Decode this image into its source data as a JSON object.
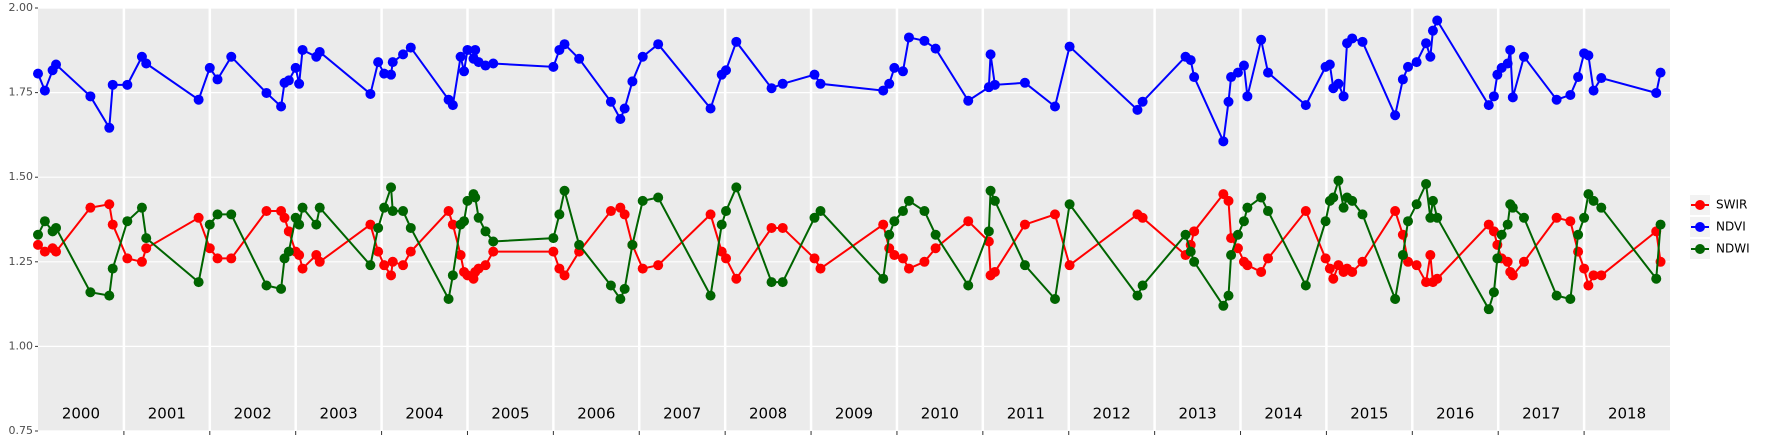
{
  "chart_data": {
    "type": "line",
    "x": [
      2000.0,
      2000.08,
      2000.17,
      2000.21,
      2000.61,
      2000.83,
      2000.87,
      2001.04,
      2001.21,
      2001.26,
      2001.87,
      2002.0,
      2002.09,
      2002.25,
      2002.66,
      2002.83,
      2002.87,
      2002.92,
      2003.0,
      2003.04,
      2003.08,
      2003.24,
      2003.28,
      2003.87,
      2003.96,
      2004.03,
      2004.11,
      2004.13,
      2004.25,
      2004.34,
      2004.78,
      2004.83,
      2004.92,
      2004.96,
      2005.0,
      2005.07,
      2005.09,
      2005.13,
      2005.21,
      2005.3,
      2006.0,
      2006.07,
      2006.13,
      2006.3,
      2006.67,
      2006.78,
      2006.83,
      2006.92,
      2007.04,
      2007.22,
      2007.83,
      2007.96,
      2008.01,
      2008.13,
      2008.54,
      2008.67,
      2009.04,
      2009.11,
      2009.84,
      2009.91,
      2009.97,
      2010.07,
      2010.14,
      2010.32,
      2010.45,
      2010.83,
      2011.07,
      2011.09,
      2011.14,
      2011.49,
      2011.84,
      2012.01,
      2012.8,
      2012.86,
      2013.36,
      2013.42,
      2013.46,
      2013.8,
      2013.86,
      2013.89,
      2013.97,
      2014.04,
      2014.08,
      2014.24,
      2014.32,
      2014.76,
      2014.99,
      2015.04,
      2015.08,
      2015.14,
      2015.2,
      2015.24,
      2015.3,
      2015.42,
      2015.8,
      2015.89,
      2015.95,
      2016.05,
      2016.16,
      2016.21,
      2016.24,
      2016.29,
      2016.89,
      2016.95,
      2016.99,
      2017.04,
      2017.11,
      2017.14,
      2017.17,
      2017.3,
      2017.68,
      2017.84,
      2017.93,
      2018.0,
      2018.05,
      2018.11,
      2018.2,
      2018.84,
      2018.89
    ],
    "series": [
      {
        "name": "SWIR",
        "color": "#ff0000",
        "values": [
          1.3,
          1.28,
          1.29,
          1.28,
          1.41,
          1.42,
          1.36,
          1.26,
          1.25,
          1.29,
          1.38,
          1.29,
          1.26,
          1.26,
          1.4,
          1.4,
          1.38,
          1.34,
          1.28,
          1.27,
          1.23,
          1.27,
          1.25,
          1.36,
          1.28,
          1.24,
          1.21,
          1.25,
          1.24,
          1.28,
          1.4,
          1.36,
          1.27,
          1.22,
          1.21,
          1.2,
          1.22,
          1.23,
          1.24,
          1.28,
          1.28,
          1.23,
          1.21,
          1.28,
          1.4,
          1.41,
          1.39,
          1.3,
          1.23,
          1.24,
          1.39,
          1.28,
          1.26,
          1.2,
          1.35,
          1.35,
          1.26,
          1.23,
          1.36,
          1.29,
          1.27,
          1.26,
          1.23,
          1.25,
          1.29,
          1.37,
          1.31,
          1.21,
          1.22,
          1.36,
          1.39,
          1.24,
          1.39,
          1.38,
          1.27,
          1.3,
          1.34,
          1.45,
          1.43,
          1.32,
          1.29,
          1.25,
          1.24,
          1.22,
          1.26,
          1.4,
          1.26,
          1.23,
          1.2,
          1.24,
          1.22,
          1.23,
          1.22,
          1.25,
          1.4,
          1.33,
          1.25,
          1.24,
          1.19,
          1.27,
          1.19,
          1.2,
          1.36,
          1.34,
          1.3,
          1.26,
          1.25,
          1.22,
          1.21,
          1.25,
          1.38,
          1.37,
          1.28,
          1.23,
          1.18,
          1.21,
          1.21,
          1.34,
          1.25
        ]
      },
      {
        "name": "NDVI",
        "color": "#0000ff",
        "values": [
          1.806,
          1.756,
          1.816,
          1.833,
          1.739,
          1.646,
          1.773,
          1.773,
          1.856,
          1.836,
          1.729,
          1.823,
          1.789,
          1.856,
          1.749,
          1.709,
          1.779,
          1.786,
          1.823,
          1.776,
          1.876,
          1.856,
          1.87,
          1.746,
          1.84,
          1.806,
          1.803,
          1.84,
          1.863,
          1.883,
          1.729,
          1.713,
          1.856,
          1.813,
          1.876,
          1.85,
          1.876,
          1.84,
          1.83,
          1.836,
          1.826,
          1.876,
          1.893,
          1.85,
          1.723,
          1.672,
          1.703,
          1.783,
          1.856,
          1.893,
          1.703,
          1.803,
          1.816,
          1.9,
          1.763,
          1.776,
          1.803,
          1.776,
          1.756,
          1.776,
          1.823,
          1.813,
          1.913,
          1.903,
          1.88,
          1.726,
          1.766,
          1.863,
          1.773,
          1.779,
          1.709,
          1.886,
          1.699,
          1.723,
          1.856,
          1.846,
          1.796,
          1.606,
          1.723,
          1.796,
          1.809,
          1.83,
          1.739,
          1.906,
          1.809,
          1.713,
          1.826,
          1.833,
          1.763,
          1.776,
          1.739,
          1.896,
          1.91,
          1.9,
          1.683,
          1.789,
          1.826,
          1.84,
          1.896,
          1.856,
          1.933,
          1.963,
          1.713,
          1.739,
          1.803,
          1.823,
          1.836,
          1.876,
          1.736,
          1.856,
          1.729,
          1.743,
          1.796,
          1.866,
          1.86,
          1.756,
          1.793,
          1.749,
          1.809
        ]
      },
      {
        "name": "NDWI",
        "color": "#006400",
        "values": [
          1.33,
          1.37,
          1.34,
          1.35,
          1.16,
          1.15,
          1.23,
          1.37,
          1.41,
          1.32,
          1.19,
          1.36,
          1.39,
          1.39,
          1.18,
          1.17,
          1.26,
          1.28,
          1.38,
          1.36,
          1.41,
          1.36,
          1.41,
          1.24,
          1.35,
          1.41,
          1.47,
          1.4,
          1.4,
          1.35,
          1.14,
          1.21,
          1.36,
          1.37,
          1.43,
          1.45,
          1.44,
          1.38,
          1.34,
          1.31,
          1.32,
          1.39,
          1.46,
          1.3,
          1.18,
          1.14,
          1.17,
          1.3,
          1.43,
          1.44,
          1.15,
          1.36,
          1.4,
          1.47,
          1.19,
          1.19,
          1.38,
          1.4,
          1.2,
          1.33,
          1.37,
          1.4,
          1.43,
          1.4,
          1.33,
          1.18,
          1.34,
          1.46,
          1.43,
          1.24,
          1.14,
          1.42,
          1.15,
          1.18,
          1.33,
          1.28,
          1.25,
          1.12,
          1.15,
          1.27,
          1.33,
          1.37,
          1.41,
          1.44,
          1.4,
          1.18,
          1.37,
          1.43,
          1.44,
          1.49,
          1.41,
          1.44,
          1.43,
          1.39,
          1.14,
          1.27,
          1.37,
          1.42,
          1.48,
          1.38,
          1.43,
          1.38,
          1.11,
          1.16,
          1.26,
          1.33,
          1.36,
          1.42,
          1.41,
          1.38,
          1.15,
          1.14,
          1.33,
          1.38,
          1.45,
          1.43,
          1.41,
          1.2,
          1.36
        ]
      }
    ],
    "xlim": [
      2000,
      2019
    ],
    "xticks": [
      2001,
      2002,
      2003,
      2004,
      2005,
      2006,
      2007,
      2008,
      2009,
      2010,
      2011,
      2012,
      2013,
      2014,
      2015,
      2016,
      2017,
      2018
    ],
    "year_labels": [
      {
        "value": 2000.5,
        "label": "2000"
      },
      {
        "value": 2001.5,
        "label": "2001"
      },
      {
        "value": 2002.5,
        "label": "2002"
      },
      {
        "value": 2003.5,
        "label": "2003"
      },
      {
        "value": 2004.5,
        "label": "2004"
      },
      {
        "value": 2005.5,
        "label": "2005"
      },
      {
        "value": 2006.5,
        "label": "2006"
      },
      {
        "value": 2007.5,
        "label": "2007"
      },
      {
        "value": 2008.5,
        "label": "2008"
      },
      {
        "value": 2009.5,
        "label": "2009"
      },
      {
        "value": 2010.5,
        "label": "2010"
      },
      {
        "value": 2011.5,
        "label": "2011"
      },
      {
        "value": 2012.5,
        "label": "2012"
      },
      {
        "value": 2013.5,
        "label": "2013"
      },
      {
        "value": 2014.5,
        "label": "2014"
      },
      {
        "value": 2015.5,
        "label": "2015"
      },
      {
        "value": 2016.5,
        "label": "2016"
      },
      {
        "value": 2017.5,
        "label": "2017"
      },
      {
        "value": 2018.5,
        "label": "2018"
      }
    ],
    "ylim": [
      0.75,
      2.0
    ],
    "yticks": [
      {
        "value": 0.75,
        "label": "0.75"
      },
      {
        "value": 1.0,
        "label": "1.00"
      },
      {
        "value": 1.25,
        "label": "1.25"
      },
      {
        "value": 1.5,
        "label": "1.50"
      },
      {
        "value": 1.75,
        "label": "1.75"
      },
      {
        "value": 2.0,
        "label": "2.00"
      }
    ],
    "grid": true
  }
}
